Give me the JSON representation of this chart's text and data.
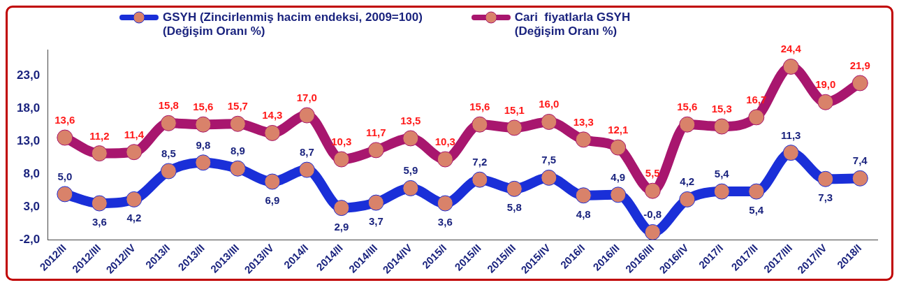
{
  "chart_data": {
    "type": "line",
    "categories": [
      "2012/II",
      "2012/III",
      "2012/IV",
      "2013/I",
      "2013/II",
      "2013/III",
      "2013/IV",
      "2014/I",
      "2014/II",
      "2014/III",
      "2014/IV",
      "2015/I",
      "2015/II",
      "2015/III",
      "2015/IV",
      "2016/I",
      "2016/II",
      "2016/III",
      "2016/IV",
      "2017/I",
      "2017/II",
      "2017/III",
      "2017/IV",
      "2018/I"
    ],
    "series": [
      {
        "name": "GSYH (Zincirlenmiş hacim endeksi, 2009=100)\n(Değişim Oranı %)",
        "color": "#1a2fd8",
        "values": [
          5.0,
          3.6,
          4.2,
          8.5,
          9.8,
          8.9,
          6.9,
          8.7,
          2.9,
          3.7,
          5.9,
          3.6,
          7.2,
          5.8,
          7.5,
          4.8,
          4.9,
          -0.8,
          4.2,
          5.4,
          5.4,
          11.3,
          7.3,
          7.4
        ],
        "value_labels": [
          "5,0",
          "3,6",
          "4,2",
          "8,5",
          "9,8",
          "8,9",
          "6,9",
          "8,7",
          "2,9",
          "3,7",
          "5,9",
          "3,6",
          "7,2",
          "5,8",
          "7,5",
          "4,8",
          "4,9",
          "-0,8",
          "4,2",
          "5,4",
          "5,4",
          "11,3",
          "7,3",
          "7,4"
        ]
      },
      {
        "name": "Cari  fiyatlarla GSYH\n(Değişim Oranı %)",
        "color": "#a8166e",
        "values": [
          13.6,
          11.2,
          11.4,
          15.8,
          15.6,
          15.7,
          14.3,
          17.0,
          10.3,
          11.7,
          13.5,
          10.3,
          15.6,
          15.1,
          16.0,
          13.3,
          12.1,
          5.5,
          15.6,
          15.3,
          16.7,
          24.4,
          19.0,
          21.9
        ],
        "value_labels": [
          "13,6",
          "11,2",
          "11,4",
          "15,8",
          "15,6",
          "15,7",
          "14,3",
          "17,0",
          "10,3",
          "11,7",
          "13,5",
          "10,3",
          "15,6",
          "15,1",
          "16,0",
          "13,3",
          "12,1",
          "5,5",
          "15,6",
          "15,3",
          "16,7",
          "24,4",
          "19,0",
          "21,9"
        ]
      }
    ],
    "ylim": [
      -2,
      27
    ],
    "yticks": [
      {
        "value": -2,
        "label": "-2,0"
      },
      {
        "value": 3,
        "label": "3,0"
      },
      {
        "value": 8,
        "label": "8,0"
      },
      {
        "value": 13,
        "label": "13,0"
      },
      {
        "value": 18,
        "label": "18,0"
      },
      {
        "value": 23,
        "label": "23,0"
      }
    ],
    "grid": false,
    "legend": "top",
    "marker": "circle",
    "line_style": "solid"
  }
}
